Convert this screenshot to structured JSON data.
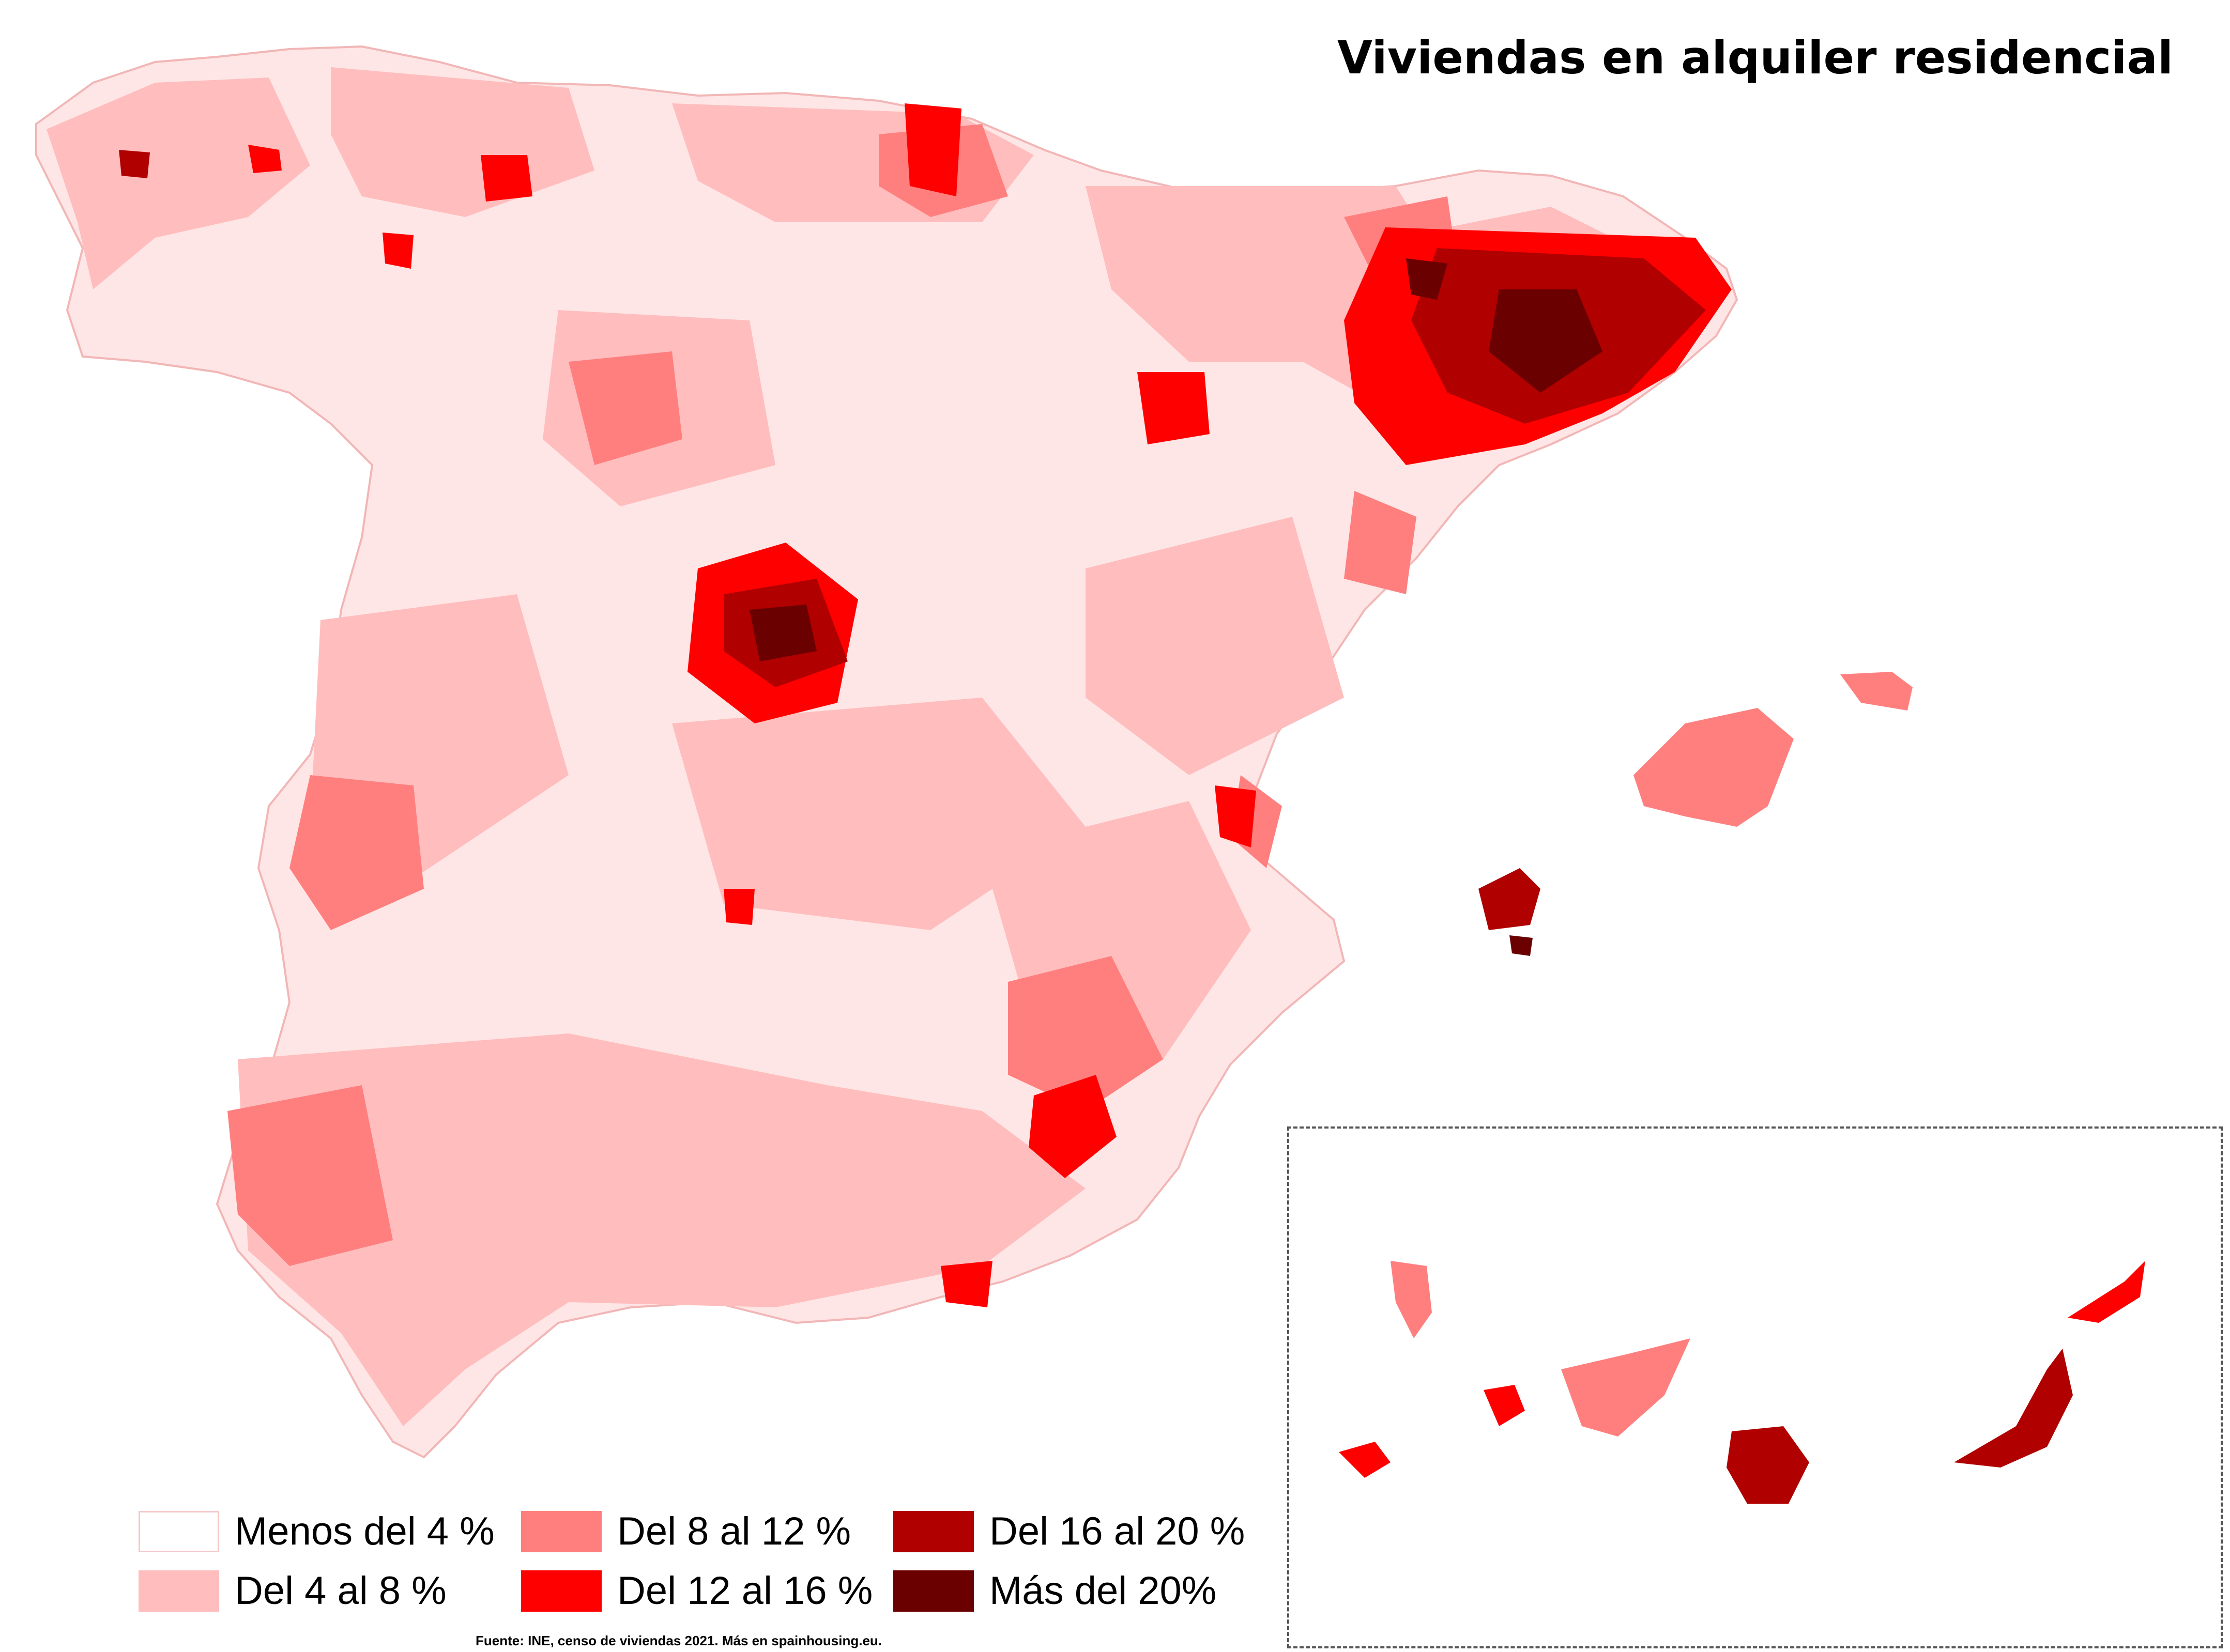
{
  "title": "Viviendas en alquiler residencial",
  "legend": [
    {
      "label": "Menos del 4 %",
      "color": "#ffffff"
    },
    {
      "label": "Del 4 al 8 %",
      "color": "#ffbdbd"
    },
    {
      "label": "Del 8 al 12 %",
      "color": "#ff7f7f"
    },
    {
      "label": "Del 12 al 16 %",
      "color": "#ff0000"
    },
    {
      "label": "Del 16 al 20 %",
      "color": "#b00000"
    },
    {
      "label": "Más del 20%",
      "color": "#6b0000"
    }
  ],
  "source": "Fuente: INE, censo de viviendas 2021. Más en spainhousing.eu.",
  "colors": {
    "border": "#ffd0d0",
    "inset_border": "#555555"
  }
}
